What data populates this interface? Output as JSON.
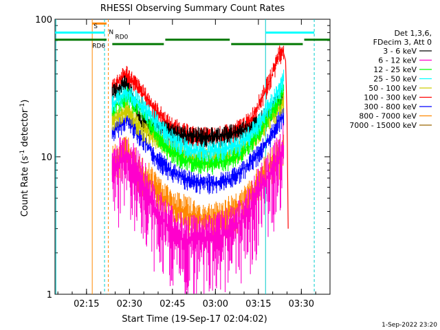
{
  "chart_data": {
    "type": "line",
    "title": "RHESSI Observing Summary Count Rates",
    "xlabel": "Start Time (19-Sep-17 02:04:02)",
    "ylabel": "Count Rate (s⁻¹ detector⁻¹)",
    "ylabel_main": "Count Rate (s",
    "ylabel_sup1": "-1",
    "ylabel_mid": " detector",
    "ylabel_sup2": "-1",
    "ylabel_end": ")",
    "y_scale": "log",
    "ylim": [
      1,
      100
    ],
    "y_ticks": [
      {
        "value": 1,
        "label": "1"
      },
      {
        "value": 10,
        "label": "10"
      },
      {
        "value": 100,
        "label": "100"
      }
    ],
    "xlim_minutes": [
      0,
      96
    ],
    "x_ticks": [
      {
        "minute": 11,
        "label": "02:15"
      },
      {
        "minute": 26,
        "label": "02:30"
      },
      {
        "minute": 41,
        "label": "02:45"
      },
      {
        "minute": 56,
        "label": "03:00"
      },
      {
        "minute": 71,
        "label": "03:15"
      },
      {
        "minute": 86,
        "label": "03:30"
      }
    ],
    "grid": false,
    "legend_position": "right",
    "legend_header": [
      "Det 1,3,6,",
      "FDecim 3, Att 0"
    ],
    "series": [
      {
        "name": "3 - 6 keV",
        "color": "#000000",
        "values_min_max": [
          [
            20,
            28
          ],
          [
            25,
            35
          ],
          [
            30,
            18
          ],
          [
            40,
            15
          ],
          [
            48,
            14
          ],
          [
            56,
            14
          ],
          [
            64,
            15
          ],
          [
            70,
            17
          ],
          [
            74,
            20
          ],
          [
            78,
            25
          ],
          [
            80,
            28
          ]
        ]
      },
      {
        "name": "6 - 12 keV",
        "color": "#ff00cc",
        "values_min_max": [
          [
            20,
            8
          ],
          [
            25,
            10
          ],
          [
            30,
            7
          ],
          [
            35,
            4
          ],
          [
            40,
            3
          ],
          [
            45,
            2.5
          ],
          [
            50,
            2.5
          ],
          [
            56,
            2.5
          ],
          [
            62,
            3
          ],
          [
            68,
            4
          ],
          [
            72,
            6
          ],
          [
            76,
            8
          ],
          [
            78,
            10
          ],
          [
            80,
            12
          ]
        ]
      },
      {
        "name": "12 - 25 keV",
        "color": "#00ff00",
        "values_min_max": [
          [
            20,
            22
          ],
          [
            25,
            28
          ],
          [
            30,
            22
          ],
          [
            35,
            15
          ],
          [
            40,
            11
          ],
          [
            48,
            9
          ],
          [
            56,
            9
          ],
          [
            64,
            10
          ],
          [
            70,
            14
          ],
          [
            74,
            19
          ],
          [
            78,
            25
          ],
          [
            80,
            32
          ]
        ]
      },
      {
        "name": "25 - 50 keV",
        "color": "#00ffff",
        "values_min_max": [
          [
            20,
            24
          ],
          [
            25,
            30
          ],
          [
            30,
            24
          ],
          [
            40,
            14
          ],
          [
            48,
            11
          ],
          [
            56,
            11
          ],
          [
            64,
            12
          ],
          [
            70,
            16
          ],
          [
            74,
            22
          ],
          [
            78,
            30
          ],
          [
            80,
            38
          ]
        ]
      },
      {
        "name": "50 - 100 keV",
        "color": "#cccc00",
        "values_min_max": [
          [
            20,
            18
          ],
          [
            25,
            22
          ],
          [
            30,
            16
          ],
          [
            40,
            12
          ],
          [
            48,
            10
          ],
          [
            56,
            10
          ],
          [
            64,
            11
          ],
          [
            70,
            14
          ],
          [
            74,
            18
          ],
          [
            78,
            22
          ],
          [
            80,
            26
          ]
        ]
      },
      {
        "name": "100 - 300 keV",
        "color": "#ff0000",
        "values_min_max": [
          [
            20,
            32
          ],
          [
            25,
            40
          ],
          [
            30,
            30
          ],
          [
            35,
            22
          ],
          [
            40,
            17
          ],
          [
            45,
            15
          ],
          [
            50,
            14
          ],
          [
            56,
            14
          ],
          [
            62,
            15
          ],
          [
            68,
            18
          ],
          [
            72,
            26
          ],
          [
            76,
            40
          ],
          [
            78,
            55
          ],
          [
            80,
            60
          ]
        ]
      },
      {
        "name": "300 - 800 keV",
        "color": "#0000ff",
        "values_min_max": [
          [
            20,
            15
          ],
          [
            25,
            19
          ],
          [
            30,
            14
          ],
          [
            35,
            10
          ],
          [
            40,
            8
          ],
          [
            45,
            7
          ],
          [
            50,
            6.5
          ],
          [
            56,
            6.5
          ],
          [
            62,
            7
          ],
          [
            68,
            9
          ],
          [
            72,
            11
          ],
          [
            76,
            15
          ],
          [
            78,
            18
          ],
          [
            80,
            20
          ]
        ]
      },
      {
        "name": "800 - 7000 keV",
        "color": "#ff8800",
        "values_min_max": [
          [
            20,
            9
          ],
          [
            25,
            11
          ],
          [
            30,
            8
          ],
          [
            35,
            6
          ],
          [
            40,
            4.5
          ],
          [
            45,
            4
          ],
          [
            50,
            3.5
          ],
          [
            56,
            3.5
          ],
          [
            62,
            4
          ],
          [
            68,
            5
          ],
          [
            72,
            7
          ],
          [
            76,
            9
          ],
          [
            78,
            10
          ],
          [
            80,
            12
          ]
        ]
      },
      {
        "name": "7000 - 15000 keV",
        "color": "#996600",
        "values_min_max": []
      }
    ],
    "bars": [
      {
        "label": "S",
        "color": "#ff8800",
        "start_min": 13,
        "end_min": 17,
        "y": 100
      },
      {
        "label": "N",
        "color": "#00cccc",
        "start_min": 17.5,
        "end_min": 18.5,
        "y": 95
      },
      {
        "label": "RD0",
        "color": "#007700",
        "start_min": 20,
        "end_min": 96,
        "y": 85
      },
      {
        "label": "RD6",
        "color": "#007700",
        "start_min": 13,
        "end_min": 18,
        "y": 75
      }
    ],
    "footer_date": "1-Sep-2022 23:20"
  }
}
